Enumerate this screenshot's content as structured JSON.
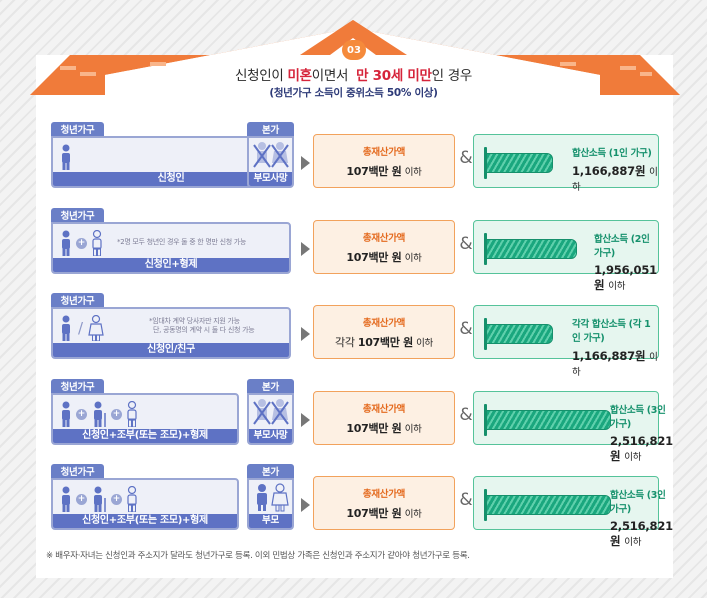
{
  "badge": "03",
  "title": {
    "part1": "신청인이 ",
    "part2": "미혼",
    "part3": "이면서",
    "part4": "만 30세 미만",
    "part5": "인 경우"
  },
  "subtitle": "(청년가구 소득이 중위소득 50% 이상)",
  "colors": {
    "roof": "#f07b3a",
    "youth_tag": "#6a7fc7",
    "asset_border": "#f2a25c",
    "asset_label": "#e46a1e",
    "income_border": "#55c39a",
    "income_label": "#15916c",
    "highlight": "#d6243a"
  },
  "rows": [
    {
      "youth_tag": "청년가구",
      "member_label": "신청인",
      "parent_tag": "본가",
      "parent_label": "부모사망",
      "asset_label": "총재산가액",
      "asset_prefix": "",
      "asset_value": "107백만 원",
      "asset_suffix": "이하",
      "income_label": "합산소득 (1인 가구)",
      "income_value": "1,166,887원",
      "income_suffix": "이하",
      "income_bar_fraction": 0.42
    },
    {
      "youth_tag": "청년가구",
      "member_label": "신청인+형제",
      "note": "*2명 모두 청년인 경우 둘 중 한 명만 신청 가능",
      "asset_label": "총재산가액",
      "asset_prefix": "",
      "asset_value": "107백만 원",
      "asset_suffix": "이하",
      "income_label": "합산소득 (2인 가구)",
      "income_value": "1,956,051원",
      "income_suffix": "이하",
      "income_bar_fraction": 0.57
    },
    {
      "youth_tag": "청년가구",
      "member_label": "신청인/친구",
      "note1": "*임대차 계약 당사자만 지원 가능",
      "note2": "단, 공동명의 계약 시 둘 다 신청 가능",
      "asset_label": "총재산가액",
      "asset_prefix": "각각",
      "asset_value": "107백만 원",
      "asset_suffix": "이하",
      "income_label": "각각 합산소득 (각 1인 가구)",
      "income_value": "1,166,887원",
      "income_suffix": "이하",
      "income_bar_fraction": 0.42
    },
    {
      "youth_tag": "청년가구",
      "member_label": "신청인+조부(또는 조모)+형제",
      "parent_tag": "본가",
      "parent_label": "부모사망",
      "asset_label": "총재산가액",
      "asset_prefix": "",
      "asset_value": "107백만 원",
      "asset_suffix": "이하",
      "income_label": "합산소득 (3인 가구)",
      "income_value": "2,516,821원",
      "income_suffix": "이하",
      "income_bar_fraction": 0.78
    },
    {
      "youth_tag": "청년가구",
      "member_label": "신청인+조부(또는 조모)+형제",
      "parent_tag": "본가",
      "parent_label": "부모",
      "asset_label": "총재산가액",
      "asset_prefix": "",
      "asset_value": "107백만 원",
      "asset_suffix": "이하",
      "income_label": "합산소득 (3인 가구)",
      "income_value": "2,516,821원",
      "income_suffix": "이하",
      "income_bar_fraction": 0.78
    }
  ],
  "footnote": "※ 배우자·자녀는 신청인과 주소지가 달라도 청년가구로 등록. 이외 민법상 가족은 신청인과 주소지가 같아야 청년가구로 등록."
}
